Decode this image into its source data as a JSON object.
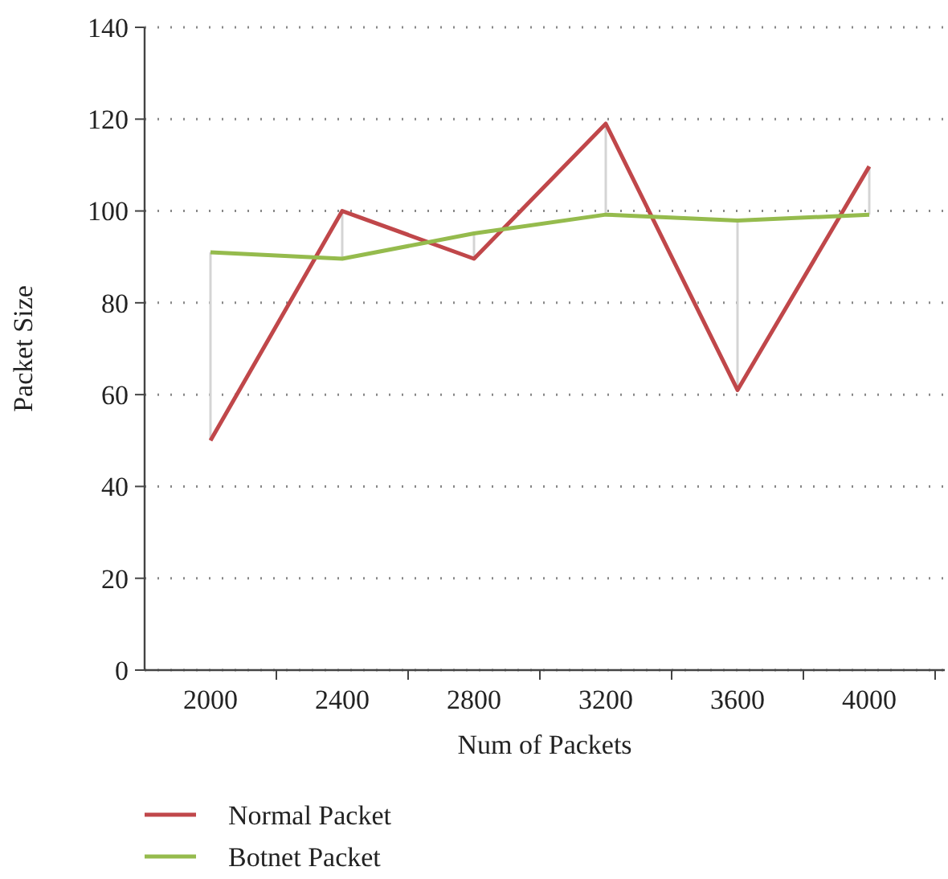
{
  "chart_data": {
    "type": "line",
    "xlabel": "Num of Packets",
    "ylabel": "Packet Size",
    "categories": [
      "2000",
      "2400",
      "2800",
      "3200",
      "3600",
      "4000"
    ],
    "series": [
      {
        "name": "Normal Packet",
        "color": "#c0474a",
        "values": [
          50,
          100,
          89.6,
          119,
          61,
          109.7
        ]
      },
      {
        "name": "Botnet Packet",
        "color": "#95bb4d",
        "values": [
          91,
          89.6,
          95.1,
          99.2,
          97.9,
          99.2
        ]
      }
    ],
    "ylim": [
      0,
      140
    ],
    "yticks": [
      0,
      20,
      40,
      60,
      80,
      100,
      120,
      140
    ],
    "grid": "y",
    "legend": "bottom",
    "marker": "none",
    "line_style": "solid"
  }
}
